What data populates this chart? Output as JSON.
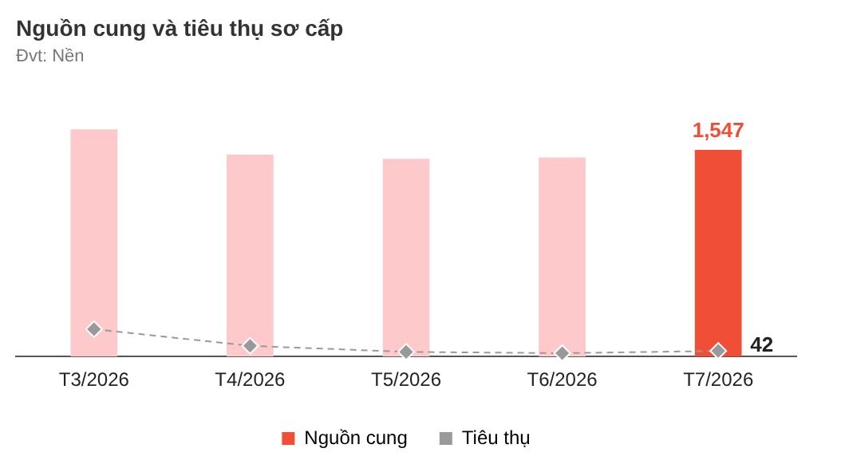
{
  "chart_data": {
    "type": "bar",
    "title": "Nguồn cung và tiêu thụ sơ cấp",
    "subtitle": "Đvt: Nền",
    "categories": [
      "T3/2026",
      "T4/2026",
      "T5/2026",
      "T6/2026",
      "T7/2026"
    ],
    "series": [
      {
        "name": "Nguồn cung",
        "color": "#f04e37",
        "colors": [
          "#fdc9cb",
          "#fdc9cb",
          "#fdc9cb",
          "#fdc9cb",
          "#f04e37"
        ],
        "values": [
          1700,
          1510,
          1480,
          1490,
          1547
        ],
        "value_labels": [
          null,
          null,
          null,
          null,
          "1,547"
        ]
      },
      {
        "name": "Tiêu thụ",
        "type": "line",
        "color": "#999999",
        "values": [
          205,
          80,
          35,
          25,
          42
        ],
        "value_labels": [
          null,
          null,
          null,
          null,
          "42"
        ],
        "marker": "diamond",
        "line_style": "dashed"
      }
    ],
    "legend": "bottom",
    "grid": false
  }
}
